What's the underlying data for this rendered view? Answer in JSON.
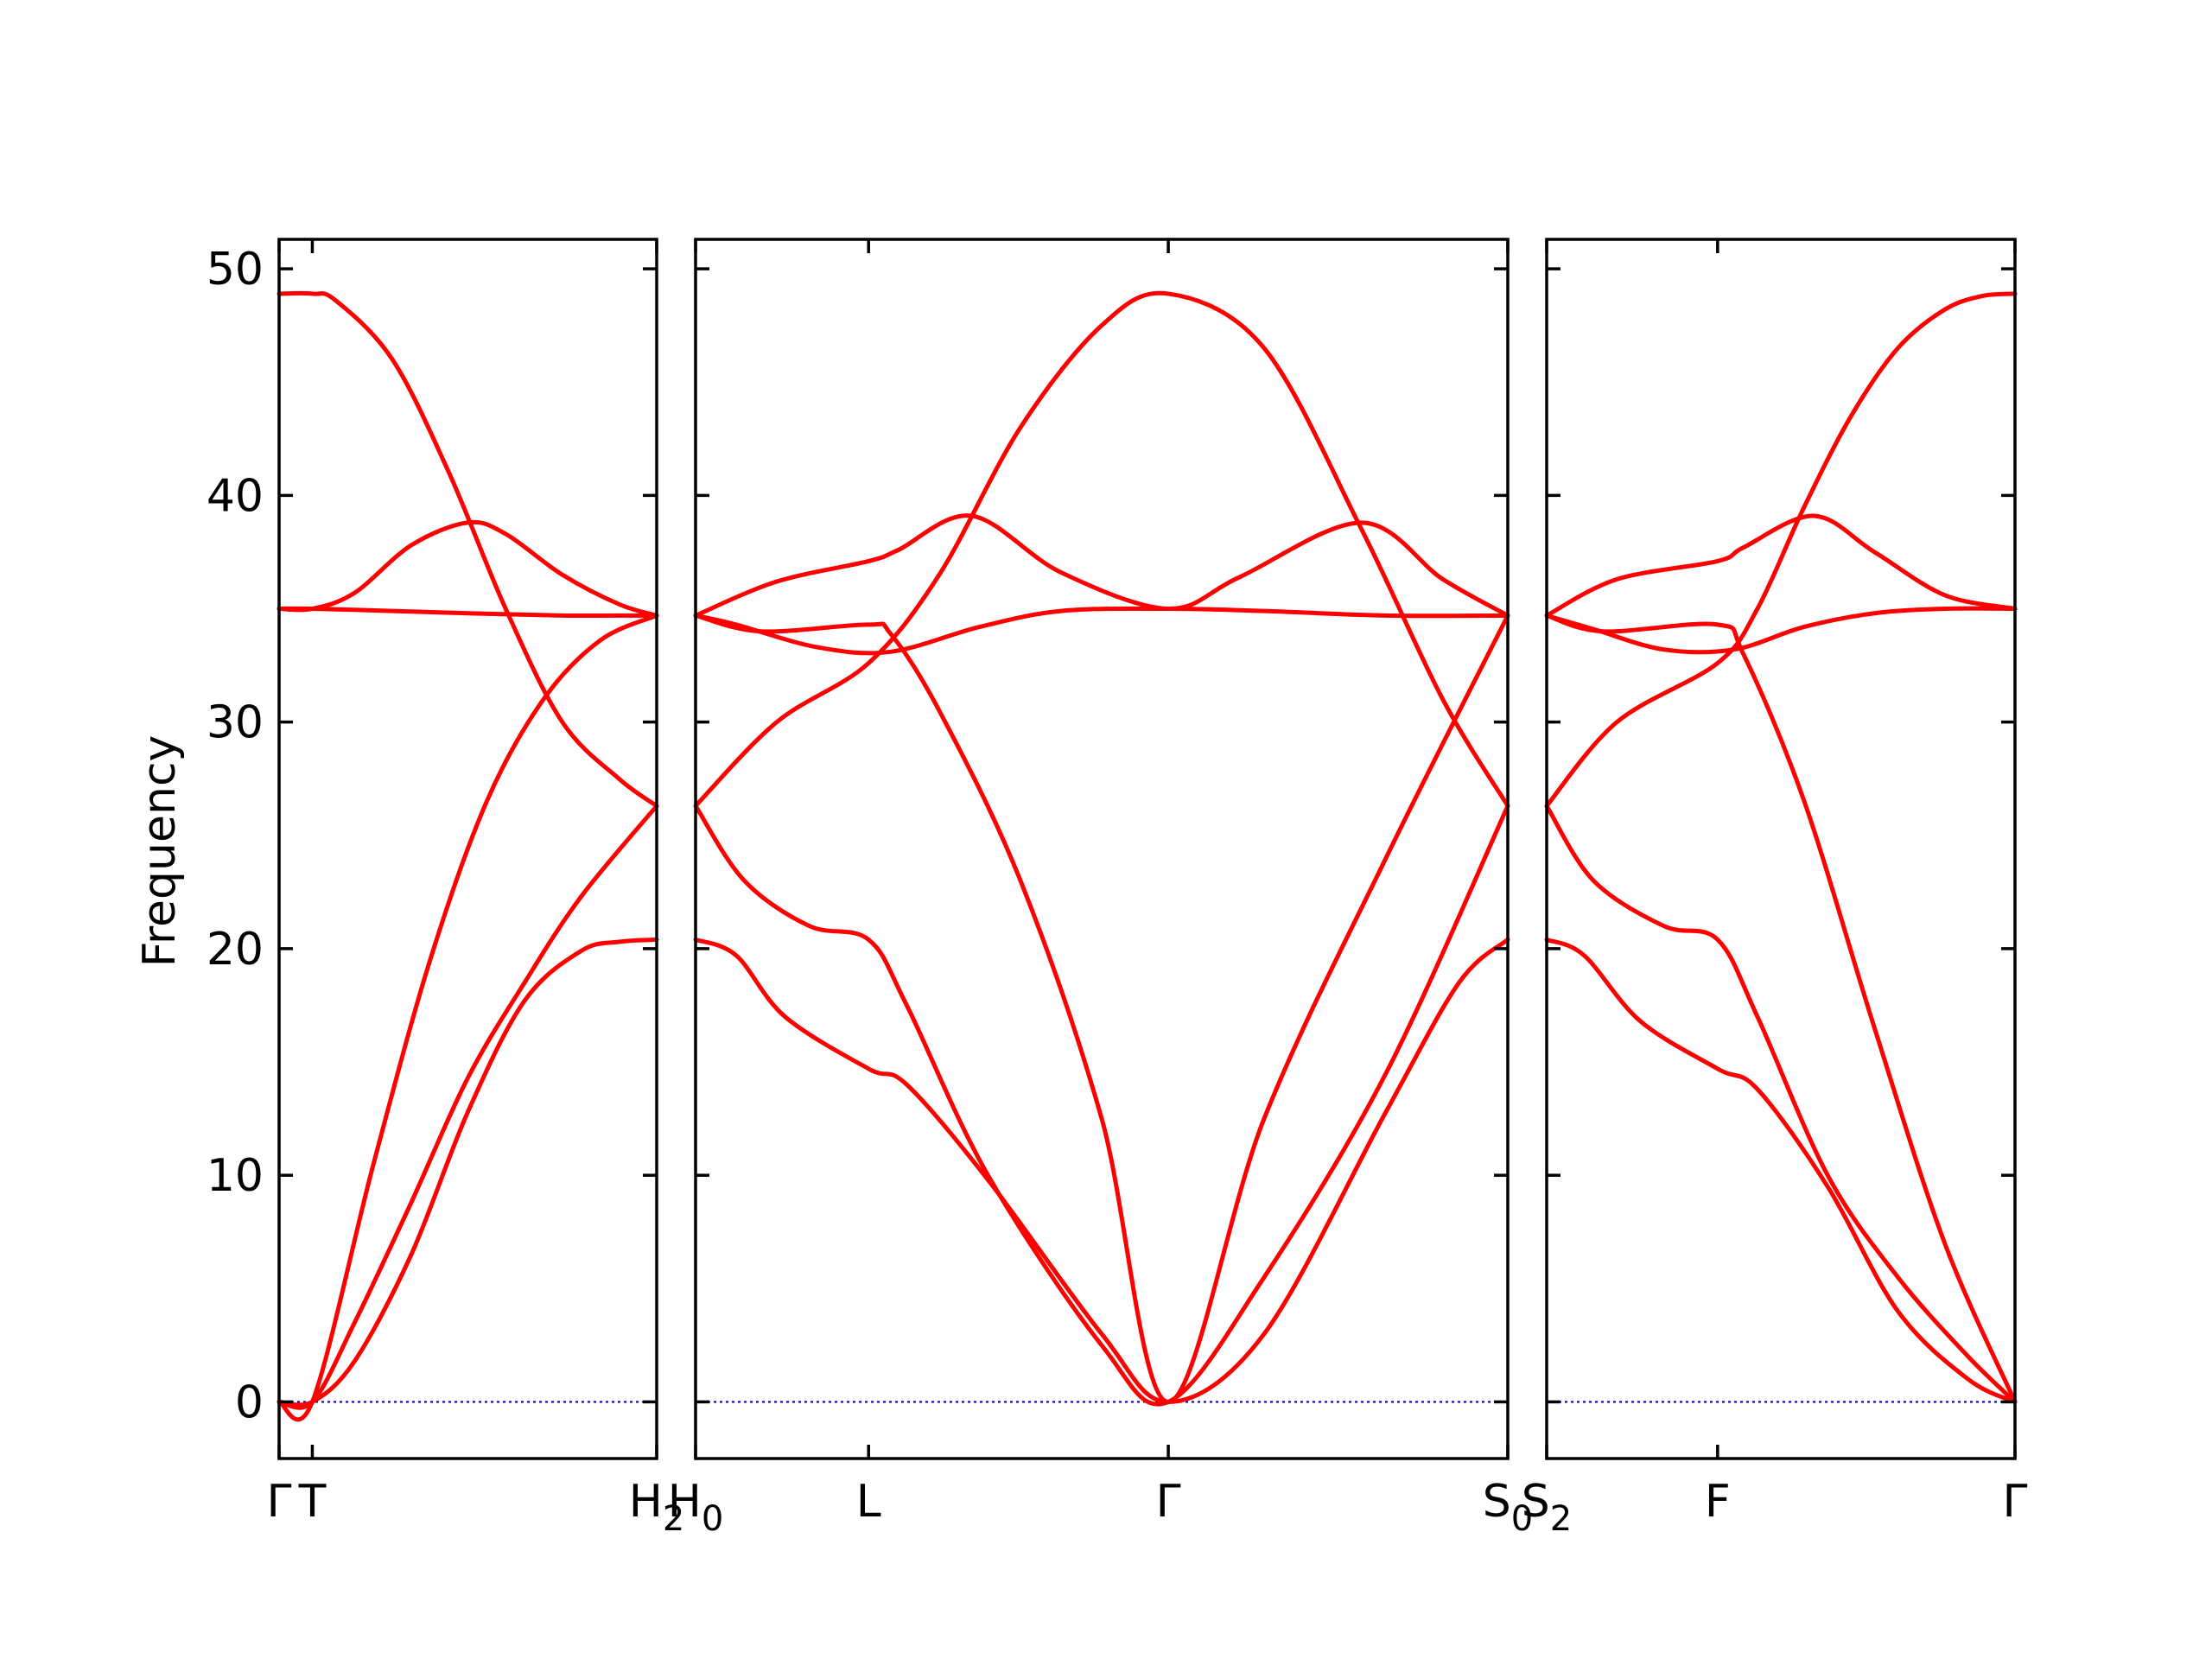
{
  "chart_data": {
    "type": "line",
    "ylabel": "Frequency",
    "ylim": [
      -2.5,
      51.3
    ],
    "yticks": [
      0,
      10,
      20,
      30,
      40,
      50
    ],
    "colors": {
      "bands": "#ff0000",
      "zero_line": "#0000cc",
      "axes": "#000000"
    },
    "panels": [
      {
        "xlim": [
          0,
          1
        ],
        "ticks": [
          {
            "x": 0.0,
            "label": "Γ"
          },
          {
            "x": 0.088,
            "label": "T"
          },
          {
            "x": 1.0,
            "label": "H",
            "sub": "2"
          }
        ],
        "series": [
          {
            "x": [
              0,
              0.088,
              0.15,
              0.3,
              0.45,
              0.6,
              0.75,
              0.9,
              1.0
            ],
            "y": [
              48.9,
              48.9,
              48.6,
              46.0,
              41.0,
              35.0,
              30.0,
              27.5,
              26.3
            ]
          },
          {
            "x": [
              0,
              0.088,
              0.2,
              0.35,
              0.5,
              0.6,
              0.75,
              0.9,
              1.0
            ],
            "y": [
              35.0,
              35.0,
              35.7,
              37.8,
              38.8,
              38.3,
              36.5,
              35.2,
              34.7
            ]
          },
          {
            "x": [
              0,
              0.088,
              0.3,
              0.5,
              0.75,
              0.9,
              1.0
            ],
            "y": [
              35.0,
              35.0,
              34.9,
              34.8,
              34.7,
              34.7,
              34.7
            ]
          },
          {
            "x": [
              0,
              0.088,
              0.25,
              0.4,
              0.55,
              0.7,
              0.85,
              1.0
            ],
            "y": [
              0,
              0,
              10.5,
              19.5,
              26.5,
              31.0,
              33.6,
              34.7
            ]
          },
          {
            "x": [
              0,
              0.088,
              0.2,
              0.35,
              0.5,
              0.65,
              0.8,
              1.0
            ],
            "y": [
              0,
              0,
              3.5,
              8.8,
              14.3,
              18.5,
              22.3,
              26.3
            ]
          },
          {
            "x": [
              0,
              0.088,
              0.2,
              0.35,
              0.5,
              0.65,
              0.8,
              0.9,
              1.0
            ],
            "y": [
              0,
              0,
              1.8,
              6.5,
              12.8,
              17.7,
              19.9,
              20.3,
              20.4
            ]
          }
        ]
      },
      {
        "xlim": [
          0,
          1
        ],
        "ticks": [
          {
            "x": 0.0,
            "label": "H",
            "sub": "0"
          },
          {
            "x": 0.213,
            "label": "L"
          },
          {
            "x": 0.582,
            "label": "Γ"
          },
          {
            "x": 1.0,
            "label": "S",
            "sub": "0"
          }
        ],
        "series": [
          {
            "x": [
              0,
              0.1,
              0.213,
              0.3,
              0.4,
              0.5,
              0.582,
              0.7,
              0.82,
              0.92,
              1.0
            ],
            "y": [
              26.3,
              30.0,
              32.6,
              36.5,
              43.0,
              47.5,
              48.9,
              46.5,
              38.5,
              31.0,
              26.3
            ]
          },
          {
            "x": [
              0,
              0.1,
              0.213,
              0.25,
              0.34,
              0.45,
              0.582,
              0.67,
              0.82,
              0.92,
              1.0
            ],
            "y": [
              34.7,
              36.2,
              37.1,
              37.6,
              39.1,
              36.6,
              35.0,
              36.4,
              38.8,
              36.3,
              34.7
            ]
          },
          {
            "x": [
              0,
              0.08,
              0.213,
              0.24,
              0.3,
              0.4,
              0.5,
              0.582,
              0.7,
              0.85,
              1.0
            ],
            "y": [
              34.7,
              34.0,
              34.3,
              33.9,
              30.5,
              23.0,
              12.5,
              0.0,
              12.5,
              24.0,
              34.7
            ]
          },
          {
            "x": [
              0,
              0.05,
              0.15,
              0.24,
              0.35,
              0.45,
              0.582,
              0.7,
              0.85,
              1.0
            ],
            "y": [
              34.7,
              34.3,
              33.3,
              33.1,
              34.2,
              34.9,
              35.0,
              34.9,
              34.7,
              34.7
            ]
          },
          {
            "x": [
              0,
              0.06,
              0.14,
              0.213,
              0.26,
              0.36,
              0.5,
              0.582,
              0.7,
              0.85,
              1.0
            ],
            "y": [
              26.3,
              23.0,
              21.0,
              20.4,
              17.5,
              10.0,
              2.5,
              0.0,
              5.5,
              14.5,
              26.3
            ]
          },
          {
            "x": [
              0,
              0.05,
              0.11,
              0.213,
              0.26,
              0.36,
              0.5,
              0.582,
              0.7,
              0.85,
              0.94,
              1.0
            ],
            "y": [
              20.4,
              19.7,
              17.0,
              14.7,
              14.0,
              9.8,
              3.0,
              0.0,
              3.0,
              12.8,
              18.5,
              20.4
            ]
          }
        ]
      },
      {
        "xlim": [
          0,
          1
        ],
        "ticks": [
          {
            "x": 0.0,
            "label": "S",
            "sub": "2"
          },
          {
            "x": 0.365,
            "label": "F"
          },
          {
            "x": 1.0,
            "label": "Γ"
          }
        ],
        "series": [
          {
            "x": [
              0,
              0.15,
              0.365,
              0.45,
              0.55,
              0.65,
              0.75,
              0.85,
              0.93,
              1.0
            ],
            "y": [
              26.3,
              30.0,
              32.6,
              35.0,
              39.5,
              43.5,
              46.5,
              48.2,
              48.8,
              48.9
            ]
          },
          {
            "x": [
              0,
              0.15,
              0.365,
              0.42,
              0.57,
              0.7,
              0.85,
              1.0
            ],
            "y": [
              34.7,
              36.3,
              37.1,
              37.7,
              39.1,
              37.5,
              35.6,
              35.0
            ]
          },
          {
            "x": [
              0,
              0.12,
              0.365,
              0.42,
              0.55,
              0.7,
              0.85,
              1.0
            ],
            "y": [
              34.7,
              34.0,
              34.3,
              33.0,
              26.5,
              16.5,
              7.0,
              0.0
            ]
          },
          {
            "x": [
              0,
              0.1,
              0.25,
              0.4,
              0.55,
              0.7,
              0.85,
              1.0
            ],
            "y": [
              34.7,
              34.1,
              33.2,
              33.2,
              34.2,
              34.8,
              35.0,
              35.0
            ]
          },
          {
            "x": [
              0,
              0.1,
              0.25,
              0.365,
              0.45,
              0.6,
              0.75,
              0.9,
              1.0
            ],
            "y": [
              26.3,
              23.0,
              21.0,
              20.4,
              17.0,
              10.0,
              5.5,
              2.0,
              0.0
            ]
          },
          {
            "x": [
              0,
              0.08,
              0.2,
              0.365,
              0.45,
              0.6,
              0.75,
              0.9,
              1.0
            ],
            "y": [
              20.4,
              19.7,
              16.8,
              14.7,
              13.8,
              9.5,
              4.0,
              1.0,
              0.0
            ]
          }
        ]
      }
    ]
  }
}
